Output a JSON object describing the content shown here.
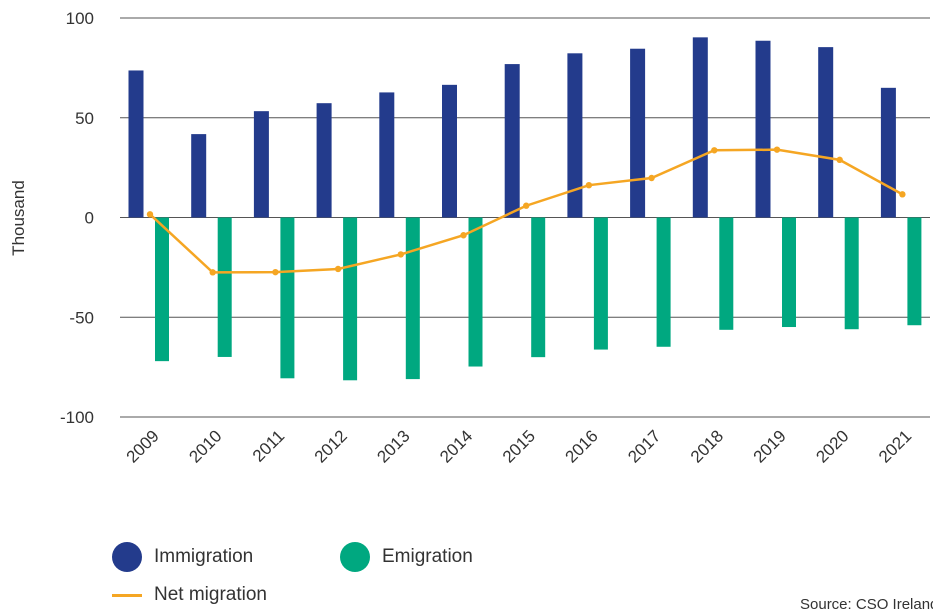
{
  "chart_data": {
    "type": "bar",
    "title": "",
    "xlabel": "",
    "ylabel": "Thousand",
    "ylim": [
      -100,
      100
    ],
    "yticks": [
      100,
      50,
      0,
      -50,
      -100
    ],
    "grid": "horizontal",
    "categories": [
      "2009",
      "2010",
      "2011",
      "2012",
      "2013",
      "2014",
      "2015",
      "2016",
      "2017",
      "2018",
      "2019",
      "2020",
      "2021"
    ],
    "series": [
      {
        "name": "Immigration",
        "type": "bar",
        "color": "#233b8c",
        "values": [
          73.7,
          41.8,
          53.3,
          57.3,
          62.7,
          66.5,
          76.9,
          82.3,
          84.6,
          90.3,
          88.6,
          85.4,
          65.0
        ]
      },
      {
        "name": "Emigration",
        "type": "bar",
        "color": "#00a880",
        "values": [
          -72.0,
          -69.9,
          -80.6,
          -81.6,
          -81.0,
          -74.7,
          -70.0,
          -66.2,
          -64.8,
          -56.3,
          -54.9,
          -56.0,
          -54.0
        ]
      },
      {
        "name": "Net migration",
        "type": "line",
        "color": "#f5a623",
        "values": [
          1.6,
          -27.5,
          -27.4,
          -25.8,
          -18.5,
          -8.9,
          5.9,
          16.2,
          19.8,
          33.7,
          34.0,
          28.9,
          11.6
        ]
      }
    ],
    "legend_position": "bottom-left",
    "source": "Source: CSO Ireland"
  }
}
